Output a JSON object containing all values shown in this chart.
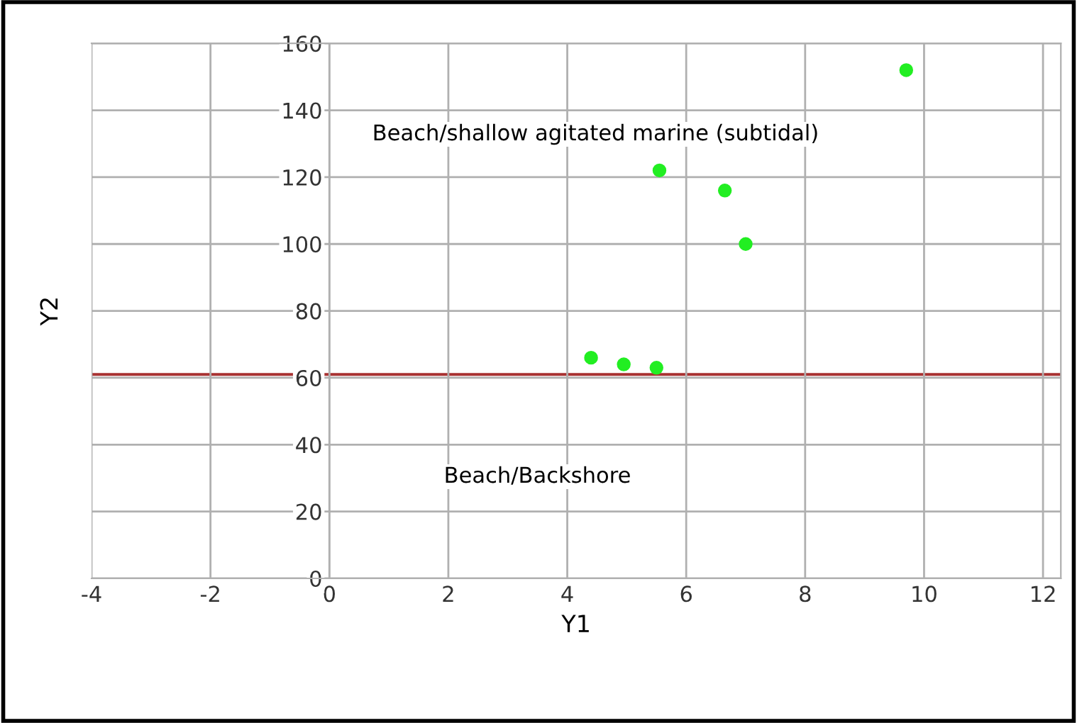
{
  "chart_data": {
    "type": "scatter",
    "xlabel": "Y1",
    "ylabel": "Y2",
    "x": [
      4.4,
      4.95,
      5.5,
      5.55,
      6.65,
      7.0,
      9.7
    ],
    "series": [
      {
        "color": "#22ee22",
        "values": [
          66,
          64,
          63,
          122,
          116,
          100,
          152
        ]
      }
    ],
    "xlim": [
      -4,
      12.3
    ],
    "xticks": [
      -4,
      -2,
      0,
      2,
      4,
      6,
      8,
      10,
      12
    ],
    "ylim": [
      0,
      160
    ],
    "yticks": [
      0,
      20,
      40,
      60,
      80,
      100,
      120,
      140,
      160
    ],
    "grid": true,
    "marker": "circle",
    "ref_lines": [
      {
        "axis": "y",
        "value": 61,
        "color": "#a83232"
      }
    ],
    "annotations": [
      "Beach/shallow agitated marine (subtidal)",
      "Beach/Backshore"
    ]
  }
}
